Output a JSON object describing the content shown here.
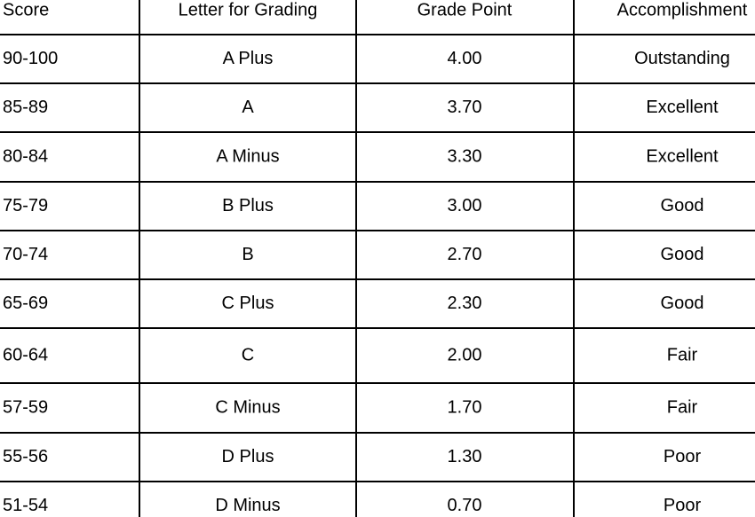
{
  "table": {
    "header": [
      "Score",
      "Letter for Grading",
      "Grade Point",
      "Accomplishment"
    ],
    "rows": [
      [
        "90-100",
        "A Plus",
        "4.00",
        "Outstanding"
      ],
      [
        "85-89",
        "A",
        "3.70",
        "Excellent"
      ],
      [
        "80-84",
        "A Minus",
        "3.30",
        "Excellent"
      ],
      [
        "75-79",
        "B Plus",
        "3.00",
        "Good"
      ],
      [
        "70-74",
        "B",
        "2.70",
        "Good"
      ],
      [
        "65-69",
        "C Plus",
        "2.30",
        "Good"
      ],
      [
        "60-64",
        "C",
        "2.00",
        "Fair"
      ],
      [
        "57-59",
        "C Minus",
        "1.70",
        "Fair"
      ],
      [
        "55-56",
        "D Plus",
        "1.30",
        "Poor"
      ],
      [
        "51-54",
        "D Minus",
        "0.70",
        "Poor"
      ]
    ]
  }
}
